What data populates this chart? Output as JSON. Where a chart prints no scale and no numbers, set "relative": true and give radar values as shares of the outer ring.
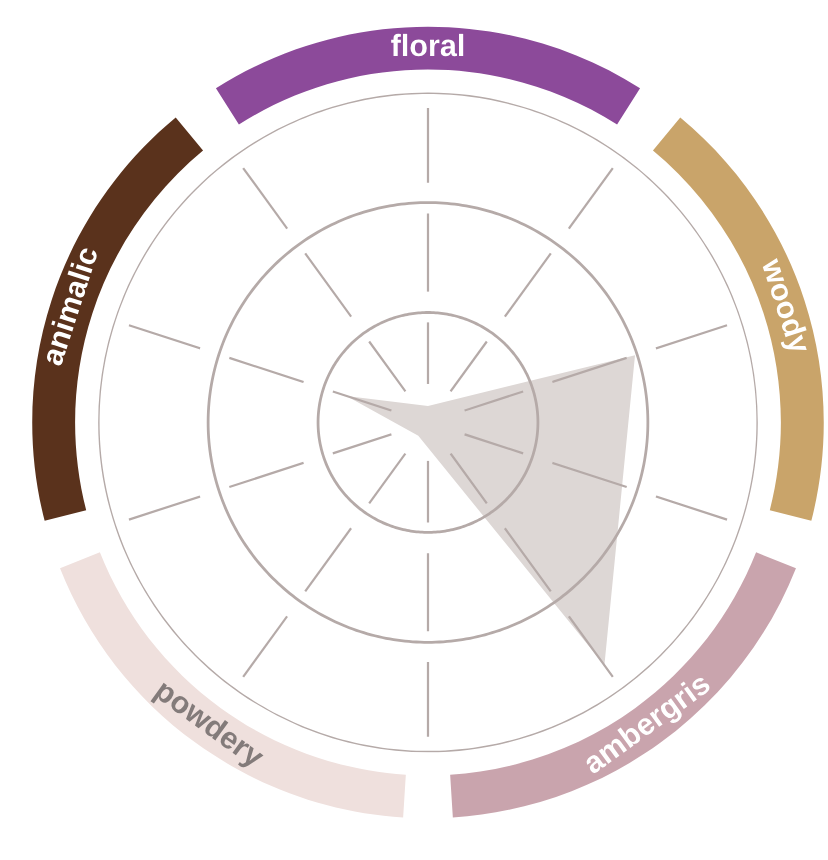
{
  "chart_data": {
    "type": "radar",
    "relative": true,
    "categories": [
      "floral",
      "woody",
      "ambergris",
      "powdery",
      "animalic"
    ],
    "colors": [
      "#8c4a9a",
      "#c9a46a",
      "#c9a4ad",
      "#efe0dd",
      "#5a321c"
    ],
    "series": [
      {
        "color": "#ddd7d5",
        "values": [
          0.05,
          0.66,
          0.91,
          0.05,
          0.26
        ]
      }
    ],
    "grid": true
  }
}
